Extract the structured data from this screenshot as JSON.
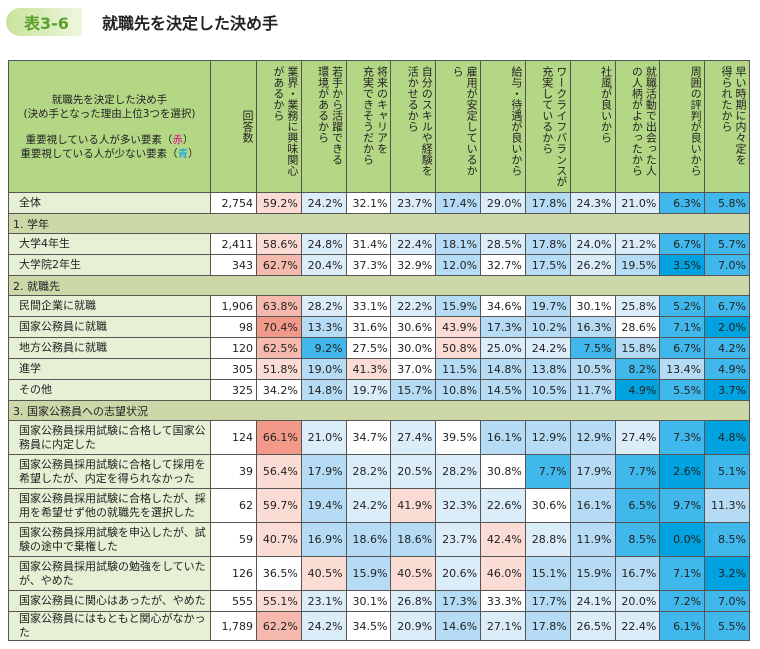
{
  "header": {
    "badge": "表3-6",
    "title": "就職先を決定した決め手"
  },
  "corner": {
    "line1": "就職先を決定した決め手",
    "line2": "(決め手となった理由上位3つを選択)",
    "line3a": "重要視している人が多い要素（",
    "line3b": "赤",
    "line3c": "）",
    "line4a": "重要視している人が少ない要素（",
    "line4b": "青",
    "line4c": "）"
  },
  "columns": [
    "回答数",
    "業界・業務に興味関心\nがあるから",
    "若手から活躍できる\n環境があるから",
    "将来のキャリアを\n充実できそうだから",
    "自分のスキルや経験を\n活かせるから",
    "雇用が安定しているか\nら",
    "給与・待遇が良いから",
    "ワークライフバランスが\n充実しているから",
    "社風が良いから",
    "就職活動で出会った人\nの人柄がよかったから",
    "周囲の評判が良いから",
    "早い時期に内々定を\n得られたから"
  ],
  "colors": {
    "R3": "#f2998a",
    "R2": "#f6b9ad",
    "R1": "#fbdcd5",
    "W": "#ffffff",
    "B1": "#dcedfa",
    "B2": "#b5dcf4",
    "B3": "#40b8ec",
    "B4": "#00a2df"
  },
  "total": {
    "label": "全体",
    "n": "2,754",
    "v": [
      "59.2%",
      "24.2%",
      "32.1%",
      "23.7%",
      "17.4%",
      "29.0%",
      "17.8%",
      "24.3%",
      "21.0%",
      "6.3%",
      "5.8%"
    ],
    "c": [
      "R1",
      "B1",
      "W",
      "B1",
      "B2",
      "B1",
      "B2",
      "B1",
      "B1",
      "B3",
      "B3"
    ]
  },
  "sections": [
    {
      "title": "1.  学年",
      "rows": [
        {
          "label": "大学4年生",
          "n": "2,411",
          "v": [
            "58.6%",
            "24.8%",
            "31.4%",
            "22.4%",
            "18.1%",
            "28.5%",
            "17.8%",
            "24.0%",
            "21.2%",
            "6.7%",
            "5.7%"
          ],
          "c": [
            "R1",
            "B1",
            "W",
            "B1",
            "B2",
            "B1",
            "B2",
            "B1",
            "B1",
            "B3",
            "B3"
          ]
        },
        {
          "label": "大学院2年生",
          "n": "343",
          "v": [
            "62.7%",
            "20.4%",
            "37.3%",
            "32.9%",
            "12.0%",
            "32.7%",
            "17.5%",
            "26.2%",
            "19.5%",
            "3.5%",
            "7.0%"
          ],
          "c": [
            "R2",
            "B1",
            "W",
            "W",
            "B2",
            "W",
            "B2",
            "B1",
            "B2",
            "B4",
            "B3"
          ]
        }
      ]
    },
    {
      "title": "2.  就職先",
      "rows": [
        {
          "label": "民間企業に就職",
          "n": "1,906",
          "v": [
            "63.8%",
            "28.2%",
            "33.1%",
            "22.2%",
            "15.9%",
            "34.6%",
            "19.7%",
            "30.1%",
            "25.8%",
            "5.2%",
            "6.7%"
          ],
          "c": [
            "R2",
            "B1",
            "W",
            "B1",
            "B2",
            "W",
            "B2",
            "W",
            "B1",
            "B3",
            "B3"
          ]
        },
        {
          "label": "国家公務員に就職",
          "n": "98",
          "v": [
            "70.4%",
            "13.3%",
            "31.6%",
            "30.6%",
            "43.9%",
            "17.3%",
            "10.2%",
            "16.3%",
            "28.6%",
            "7.1%",
            "2.0%"
          ],
          "c": [
            "R3",
            "B2",
            "W",
            "W",
            "R1",
            "B2",
            "B2",
            "B2",
            "W",
            "B3",
            "B4"
          ]
        },
        {
          "label": "地方公務員に就職",
          "n": "120",
          "v": [
            "62.5%",
            "9.2%",
            "27.5%",
            "30.0%",
            "50.8%",
            "25.0%",
            "24.2%",
            "7.5%",
            "15.8%",
            "6.7%",
            "4.2%"
          ],
          "c": [
            "R2",
            "B3",
            "W",
            "W",
            "R1",
            "B1",
            "B1",
            "B3",
            "B2",
            "B3",
            "B3"
          ]
        },
        {
          "label": "進学",
          "n": "305",
          "v": [
            "51.8%",
            "19.0%",
            "41.3%",
            "37.0%",
            "11.5%",
            "14.8%",
            "13.8%",
            "10.5%",
            "8.2%",
            "13.4%",
            "4.9%"
          ],
          "c": [
            "R1",
            "B2",
            "R1",
            "W",
            "B2",
            "B2",
            "B2",
            "B2",
            "B3",
            "B2",
            "B3"
          ]
        },
        {
          "label": "その他",
          "n": "325",
          "v": [
            "34.2%",
            "14.8%",
            "19.7%",
            "15.7%",
            "10.8%",
            "14.5%",
            "10.5%",
            "11.7%",
            "4.9%",
            "5.5%",
            "3.7%"
          ],
          "c": [
            "W",
            "B2",
            "B1",
            "B2",
            "B2",
            "B2",
            "B2",
            "B2",
            "B4",
            "B3",
            "B4"
          ]
        }
      ]
    },
    {
      "title": "3.  国家公務員への志望状況",
      "rows": [
        {
          "label": "国家公務員採用試験に合格して国家公務員に内定した",
          "n": "124",
          "v": [
            "66.1%",
            "21.0%",
            "34.7%",
            "27.4%",
            "39.5%",
            "16.1%",
            "12.9%",
            "12.9%",
            "27.4%",
            "7.3%",
            "4.8%"
          ],
          "c": [
            "R3",
            "B1",
            "W",
            "B1",
            "W",
            "B2",
            "B2",
            "B2",
            "B1",
            "B3",
            "B4"
          ]
        },
        {
          "label": "国家公務員採用試験に合格して採用を希望したが、内定を得られなかった",
          "n": "39",
          "v": [
            "56.4%",
            "17.9%",
            "28.2%",
            "20.5%",
            "28.2%",
            "30.8%",
            "7.7%",
            "17.9%",
            "7.7%",
            "2.6%",
            "5.1%"
          ],
          "c": [
            "R1",
            "B2",
            "B1",
            "B1",
            "B1",
            "W",
            "B3",
            "B2",
            "B3",
            "B4",
            "B3"
          ]
        },
        {
          "label": "国家公務員採用試験に合格したが、採用を希望せず他の就職先を選択した",
          "n": "62",
          "v": [
            "59.7%",
            "19.4%",
            "24.2%",
            "41.9%",
            "32.3%",
            "22.6%",
            "30.6%",
            "16.1%",
            "6.5%",
            "9.7%",
            "11.3%"
          ],
          "c": [
            "R1",
            "B2",
            "B1",
            "R1",
            "B1",
            "B1",
            "W",
            "B2",
            "B3",
            "B3",
            "B2"
          ]
        },
        {
          "label": "国家公務員採用試験を申込したが、試験の途中で棄権した",
          "n": "59",
          "v": [
            "40.7%",
            "16.9%",
            "18.6%",
            "18.6%",
            "23.7%",
            "42.4%",
            "28.8%",
            "11.9%",
            "8.5%",
            "0.0%",
            "8.5%"
          ],
          "c": [
            "R1",
            "B2",
            "B2",
            "B2",
            "B1",
            "R1",
            "B1",
            "B2",
            "B3",
            "B4",
            "B3"
          ]
        },
        {
          "label": "国家公務員採用試験の勉強をしていたが、やめた",
          "n": "126",
          "v": [
            "36.5%",
            "40.5%",
            "15.9%",
            "40.5%",
            "20.6%",
            "46.0%",
            "15.1%",
            "15.9%",
            "16.7%",
            "7.1%",
            "3.2%"
          ],
          "c": [
            "W",
            "R1",
            "B2",
            "R1",
            "B1",
            "R1",
            "B2",
            "B2",
            "B2",
            "B3",
            "B4"
          ]
        },
        {
          "label": "国家公務員に関心はあったが、やめた",
          "n": "555",
          "v": [
            "55.1%",
            "23.1%",
            "30.1%",
            "26.8%",
            "17.3%",
            "33.3%",
            "17.7%",
            "24.1%",
            "20.0%",
            "7.2%",
            "7.0%"
          ],
          "c": [
            "R1",
            "B1",
            "W",
            "B1",
            "B2",
            "W",
            "B2",
            "B1",
            "B1",
            "B3",
            "B3"
          ]
        },
        {
          "label": "国家公務員にはもともと関心がなかった",
          "n": "1,789",
          "v": [
            "62.2%",
            "24.2%",
            "34.5%",
            "20.9%",
            "14.6%",
            "27.1%",
            "17.8%",
            "26.5%",
            "22.4%",
            "6.1%",
            "5.5%"
          ],
          "c": [
            "R2",
            "B1",
            "W",
            "B1",
            "B2",
            "B1",
            "B2",
            "B1",
            "B1",
            "B3",
            "B3"
          ]
        }
      ]
    }
  ]
}
